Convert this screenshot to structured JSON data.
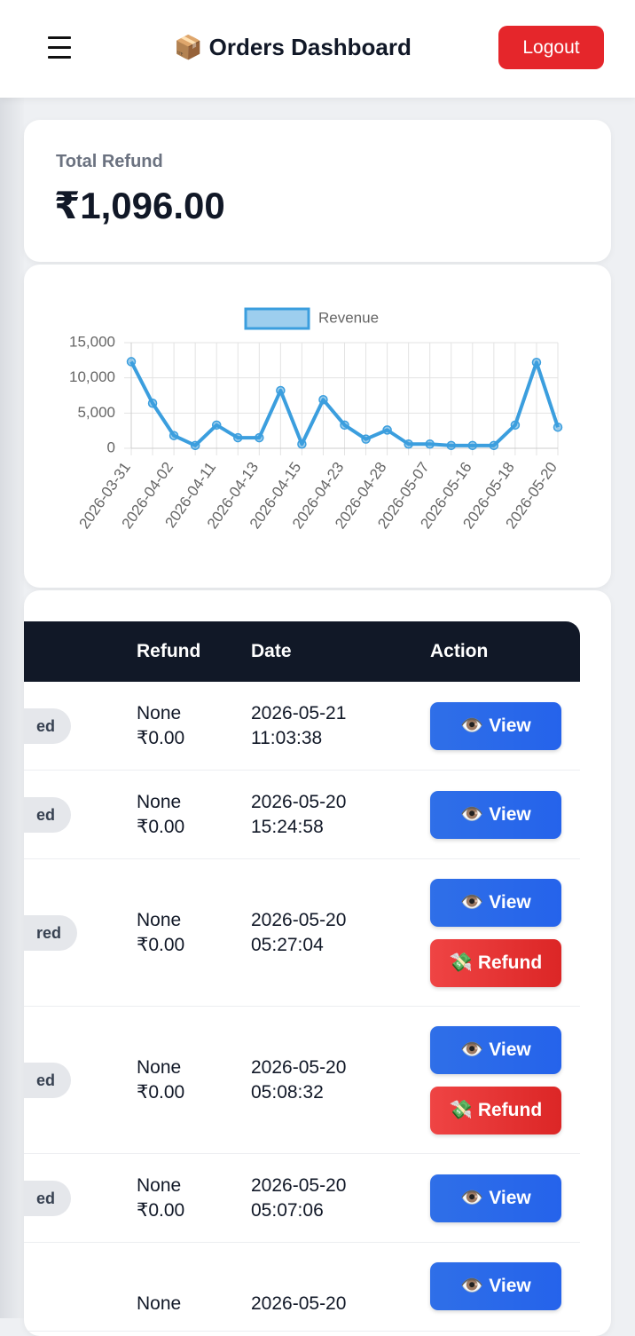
{
  "header": {
    "title": "📦 Orders Dashboard",
    "logout": "Logout"
  },
  "summary": {
    "label": "Total Refund",
    "value": "₹1,096.00"
  },
  "chart_data": {
    "type": "line",
    "categories": [
      "2026-03-31",
      null,
      "2026-04-02",
      null,
      "2026-04-11",
      null,
      "2026-04-13",
      null,
      "2026-04-15",
      null,
      "2026-04-23",
      null,
      "2026-04-28",
      null,
      "2026-05-07",
      null,
      "2026-05-16",
      null,
      "2026-05-18",
      null,
      "2026-05-20"
    ],
    "series": [
      {
        "name": "Revenue",
        "color": "#3b9ede",
        "values": [
          12300,
          6400,
          1800,
          400,
          3300,
          1500,
          1500,
          8200,
          600,
          6900,
          3300,
          1300,
          2600,
          600,
          600,
          400,
          400,
          400,
          3300,
          12200,
          3000
        ]
      }
    ],
    "ylim": [
      0,
      15000
    ],
    "yticks": [
      0,
      {
        "value": 5000,
        "label": "5,000"
      },
      {
        "value": 10000,
        "label": "10,000"
      },
      {
        "value": 15000,
        "label": "15,000"
      }
    ],
    "grid": true,
    "legend": "top"
  },
  "table": {
    "columns": [
      "Refund",
      "Date",
      "Action"
    ],
    "rows": [
      {
        "status": "ed",
        "refund": "None",
        "amount": "₹0.00",
        "date": "2026-05-21",
        "time": "11:03:38",
        "actions": [
          "👁️ View"
        ]
      },
      {
        "status": "ed",
        "refund": "None",
        "amount": "₹0.00",
        "date": "2026-05-20",
        "time": "15:24:58",
        "actions": [
          "👁️ View"
        ]
      },
      {
        "status": "red",
        "refund": "None",
        "amount": "₹0.00",
        "date": "2026-05-20",
        "time": "05:27:04",
        "actions": [
          "👁️ View",
          "💸 Refund"
        ]
      },
      {
        "status": "ed",
        "refund": "None",
        "amount": "₹0.00",
        "date": "2026-05-20",
        "time": "05:08:32",
        "actions": [
          "👁️ View",
          "💸 Refund"
        ]
      },
      {
        "status": "ed",
        "refund": "None",
        "amount": "₹0.00",
        "date": "2026-05-20",
        "time": "05:07:06",
        "actions": [
          "👁️ View"
        ]
      },
      {
        "refund": "None",
        "date": "2026-05-20",
        "actions": [
          "👁️ View"
        ]
      }
    ]
  }
}
